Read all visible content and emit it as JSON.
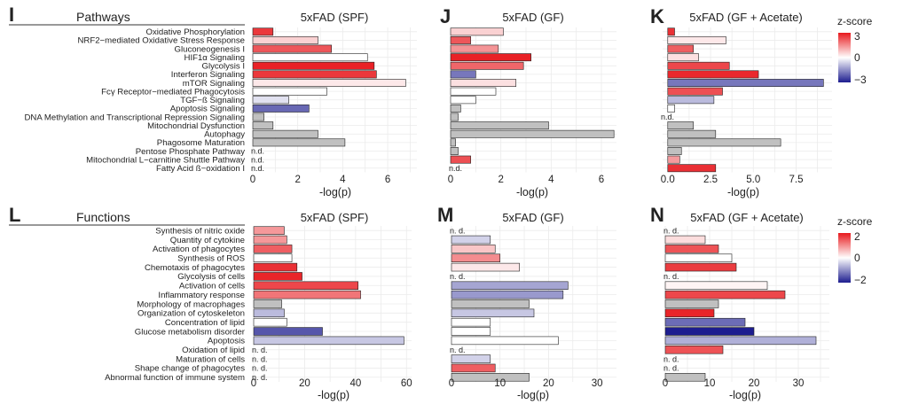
{
  "colors": {
    "grey": "#c0c0c0",
    "positive_max": "#e8191e",
    "neutral": "#ffffff",
    "negative_max": "#1d1d8f",
    "grid": "#ebebeb"
  },
  "sections": [
    {
      "letter": "I",
      "title": "Pathways"
    },
    {
      "letter": "L",
      "title": "Functions"
    }
  ],
  "legends": [
    {
      "title": "z-score",
      "ticks": [
        "3",
        "0",
        "−3"
      ],
      "min": -3,
      "max": 3
    },
    {
      "title": "z-score",
      "ticks": [
        "2",
        "0",
        "−2"
      ],
      "min": -2,
      "max": 2
    }
  ],
  "chart_data": [
    {
      "type": "bar",
      "orientation": "horizontal",
      "panel": "I",
      "title": "5xFAD (SPF)",
      "xlabel": "-log(p)",
      "xlim": [
        0,
        7.3
      ],
      "xticks": [
        0,
        2,
        4,
        6
      ],
      "categories": [
        "Oxidative Phosphorylation",
        "NRF2−mediated Oxidative Stress Response",
        "Gluconeogenesis I",
        "HIF1α Signaling",
        "Glycolysis I",
        "Interferon Signaling",
        "mTOR Signaling",
        "Fcγ Receptor−mediated Phagocytosis",
        "TGF−ß Signaling",
        "Apoptosis Signaling",
        "DNA Methylation and Transcriptional Repression Signaling",
        "Mitochondrial Dysfunction",
        "Autophagy",
        "Phagosome Maturation",
        "Pentose Phosphate Pathway",
        "Mitochondrial L−carnitine Shuttle Pathway",
        "Fatty Acid ß−oxidation I"
      ],
      "values": [
        0.9,
        2.9,
        3.5,
        5.1,
        5.4,
        5.5,
        6.8,
        3.3,
        1.6,
        2.5,
        0.5,
        0.9,
        2.9,
        4.1,
        null,
        null,
        null
      ],
      "zscores": [
        2.6,
        0.6,
        2.2,
        0.0,
        2.9,
        2.6,
        0.3,
        0.0,
        -0.4,
        -2.0,
        null,
        null,
        null,
        null,
        null,
        null,
        null
      ],
      "nd_label": "n.d."
    },
    {
      "type": "bar",
      "orientation": "horizontal",
      "panel": "J",
      "title": "5xFAD (GF)",
      "xlim": [
        0,
        6.6
      ],
      "xticks": [
        0,
        2,
        4,
        6
      ],
      "xlabel": "-log(p)",
      "values": [
        2.1,
        0.8,
        1.9,
        3.2,
        2.9,
        1.0,
        2.6,
        1.8,
        1.0,
        0.4,
        0.3,
        3.9,
        6.5,
        0.2,
        0.3,
        0.8,
        null
      ],
      "zscores": [
        0.6,
        2.2,
        1.4,
        2.9,
        2.0,
        -1.8,
        0.4,
        0.0,
        0.0,
        null,
        null,
        null,
        null,
        null,
        null,
        2.3,
        null
      ]
    },
    {
      "type": "bar",
      "orientation": "horizontal",
      "panel": "K",
      "title": "5xFAD (GF + Acetate)",
      "xlim": [
        -0.3,
        9.6
      ],
      "xticks": [
        0.0,
        2.5,
        5.0,
        7.5
      ],
      "xticklabels": [
        "0.0",
        "2.5",
        "5.0",
        "7.5"
      ],
      "xlabel": "-log(p)",
      "values": [
        0.4,
        3.4,
        1.5,
        1.8,
        3.6,
        5.3,
        9.1,
        3.2,
        2.7,
        0.4,
        null,
        1.5,
        2.8,
        6.6,
        0.8,
        0.7,
        2.8
      ],
      "zscores": [
        2.7,
        0.3,
        2.1,
        0.4,
        2.4,
        2.8,
        -1.8,
        2.3,
        -0.9,
        0.0,
        null,
        null,
        null,
        null,
        null,
        1.3,
        2.7
      ]
    },
    {
      "type": "bar",
      "orientation": "horizontal",
      "panel": "L",
      "title": "5xFAD (SPF)",
      "xlabel": "-log(p)",
      "xlim": [
        0,
        62
      ],
      "xticks": [
        0,
        20,
        40,
        60
      ],
      "categories": [
        "Synthesis of nitric oxide",
        "Quantity of cytokine",
        "Activation of phagocytes",
        "Synthesis of ROS",
        "Chemotaxis of phagocytes",
        "Glycolysis of cells",
        "Activation of cells",
        "Inflammatory response",
        "Morphology of macrophages",
        "Organization of cytoskeleton",
        "Concentration of lipid",
        "Glucose metabolism disorder",
        "Apoptosis",
        "Oxidation of lipid",
        "Maturation of cells",
        "Shape change of phagocytes",
        "Abnormal function of immune system"
      ],
      "values": [
        12,
        13,
        15,
        15,
        17,
        19,
        41,
        42,
        11,
        12,
        13,
        27,
        59,
        null,
        null,
        null,
        null
      ],
      "zscores": [
        0.9,
        0.9,
        1.4,
        0.0,
        1.8,
        1.9,
        1.6,
        1.2,
        null,
        -0.6,
        0.0,
        -1.5,
        -0.5,
        null,
        null,
        null,
        null
      ],
      "nd_label": "n. d."
    },
    {
      "type": "bar",
      "orientation": "horizontal",
      "panel": "M",
      "title": "5xFAD (GF)",
      "xlim": [
        0,
        34
      ],
      "xticks": [
        0,
        10,
        20,
        30
      ],
      "xlabel": "-log(p)",
      "values": [
        null,
        8,
        9,
        10,
        14,
        null,
        24,
        23,
        16,
        17,
        8,
        8,
        22,
        null,
        8,
        9,
        16
      ],
      "zscores": [
        null,
        -0.4,
        0.5,
        1.0,
        0.2,
        null,
        -0.8,
        -0.9,
        null,
        -0.5,
        0.0,
        0.0,
        0.0,
        null,
        -0.4,
        1.4,
        null
      ]
    },
    {
      "type": "bar",
      "orientation": "horizontal",
      "panel": "N",
      "title": "5xFAD (GF + Acetate)",
      "xlim": [
        0,
        37
      ],
      "xticks": [
        0,
        10,
        20,
        30
      ],
      "xlabel": "-log(p)",
      "values": [
        null,
        9,
        12,
        15,
        16,
        null,
        23,
        27,
        12,
        11,
        18,
        20,
        34,
        13,
        null,
        null,
        9
      ],
      "zscores": [
        null,
        0.3,
        1.5,
        0.0,
        1.7,
        null,
        0.1,
        1.6,
        null,
        1.9,
        -1.3,
        -2.4,
        -0.7,
        1.5,
        null,
        null,
        null
      ]
    }
  ]
}
